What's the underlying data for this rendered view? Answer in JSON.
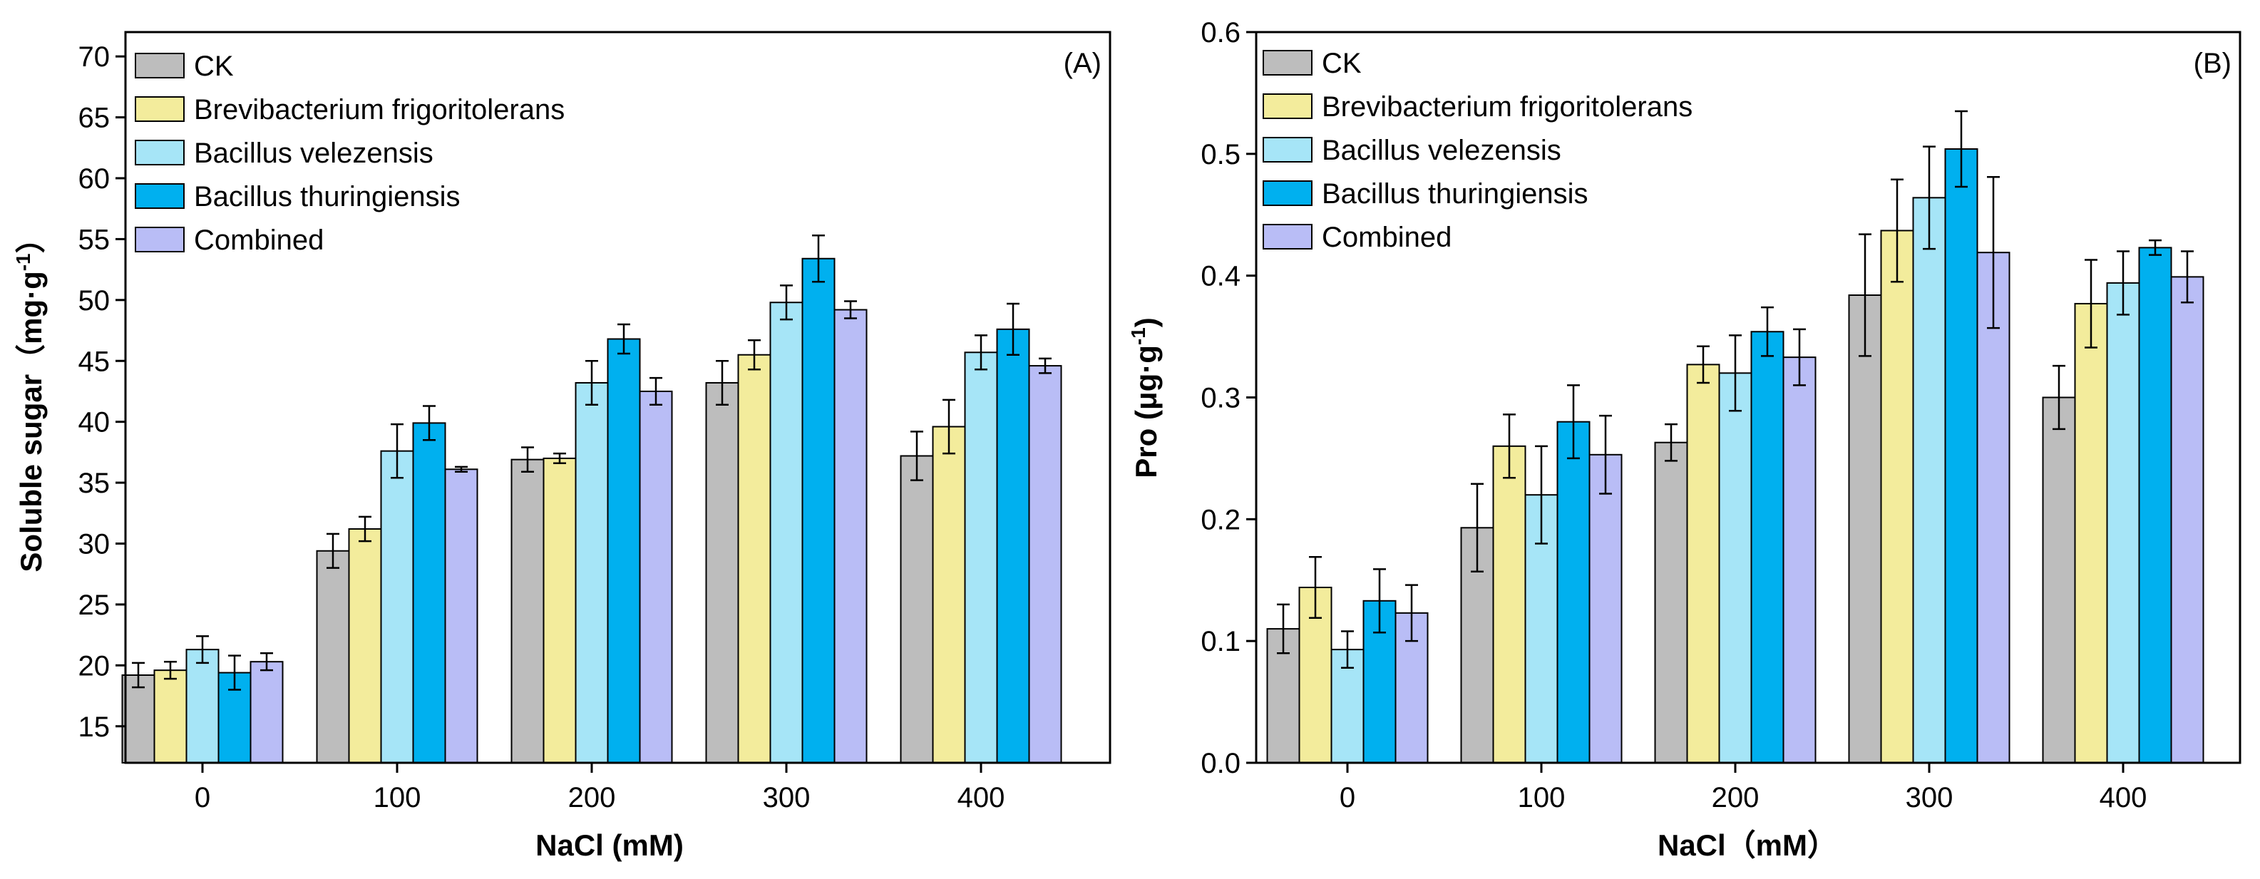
{
  "series_colors": {
    "CK": "#bdbdbd",
    "Brevibacterium frigoritolerans": "#f3ec9c",
    "Bacillus velezensis": "#a6e5f7",
    "Bacillus thuringiensis": "#00b0ef",
    "Combined": "#b9bdf6"
  },
  "chart_data": [
    {
      "type": "bar",
      "panel_label": "(A)",
      "categories": [
        "0",
        "100",
        "200",
        "300",
        "400"
      ],
      "xlabel": "NaCl (mM)",
      "ylabel": "Soluble sugar（mg·g",
      "ylabel_sup": "-1",
      "ylabel_close": "）",
      "ylim": [
        12,
        72
      ],
      "yticks": [
        15,
        20,
        25,
        30,
        35,
        40,
        45,
        50,
        55,
        60,
        65,
        70
      ],
      "ytick_labels": [
        "15",
        "20",
        "25",
        "30",
        "35",
        "40",
        "45",
        "50",
        "55",
        "60",
        "65",
        "70"
      ],
      "legend_position": "top-left",
      "series": [
        {
          "name": "CK",
          "values": [
            19.2,
            29.4,
            36.9,
            43.2,
            37.2
          ],
          "errors": [
            1.0,
            1.4,
            1.0,
            1.8,
            2.0
          ]
        },
        {
          "name": "Brevibacterium frigoritolerans",
          "values": [
            19.6,
            31.2,
            37.0,
            45.5,
            39.6
          ],
          "errors": [
            0.7,
            1.0,
            0.4,
            1.2,
            2.2
          ]
        },
        {
          "name": "Bacillus velezensis",
          "values": [
            21.3,
            37.6,
            43.2,
            49.8,
            45.7
          ],
          "errors": [
            1.1,
            2.2,
            1.8,
            1.4,
            1.4
          ]
        },
        {
          "name": "Bacillus thuringiensis",
          "values": [
            19.4,
            39.9,
            46.8,
            53.4,
            47.6
          ],
          "errors": [
            1.4,
            1.4,
            1.2,
            1.9,
            2.1
          ]
        },
        {
          "name": "Combined",
          "values": [
            20.3,
            36.1,
            42.5,
            49.2,
            44.6
          ],
          "errors": [
            0.7,
            0.2,
            1.1,
            0.7,
            0.6
          ]
        }
      ]
    },
    {
      "type": "bar",
      "panel_label": "(B)",
      "categories": [
        "0",
        "100",
        "200",
        "300",
        "400"
      ],
      "xlabel": "NaCl（mM）",
      "ylabel": "Pro (μg·g",
      "ylabel_sup": "-1",
      "ylabel_close": ")",
      "ylim": [
        0,
        0.6
      ],
      "yticks": [
        0,
        0.1,
        0.2,
        0.3,
        0.4,
        0.5,
        0.6
      ],
      "ytick_labels": [
        "0.0",
        "0.1",
        "0.2",
        "0.3",
        "0.4",
        "0.5",
        "0.6"
      ],
      "legend_position": "top-left",
      "series": [
        {
          "name": "CK",
          "values": [
            0.11,
            0.193,
            0.263,
            0.384,
            0.3
          ],
          "errors": [
            0.02,
            0.036,
            0.015,
            0.05,
            0.026
          ]
        },
        {
          "name": "Brevibacterium frigoritolerans",
          "values": [
            0.144,
            0.26,
            0.327,
            0.437,
            0.377
          ],
          "errors": [
            0.025,
            0.026,
            0.015,
            0.042,
            0.036
          ]
        },
        {
          "name": "Bacillus velezensis",
          "values": [
            0.093,
            0.22,
            0.32,
            0.464,
            0.394
          ],
          "errors": [
            0.015,
            0.04,
            0.031,
            0.042,
            0.026
          ]
        },
        {
          "name": "Bacillus thuringiensis",
          "values": [
            0.133,
            0.28,
            0.354,
            0.504,
            0.423
          ],
          "errors": [
            0.026,
            0.03,
            0.02,
            0.031,
            0.006
          ]
        },
        {
          "name": "Combined",
          "values": [
            0.123,
            0.253,
            0.333,
            0.419,
            0.399
          ],
          "errors": [
            0.023,
            0.032,
            0.023,
            0.062,
            0.021
          ]
        }
      ]
    }
  ]
}
